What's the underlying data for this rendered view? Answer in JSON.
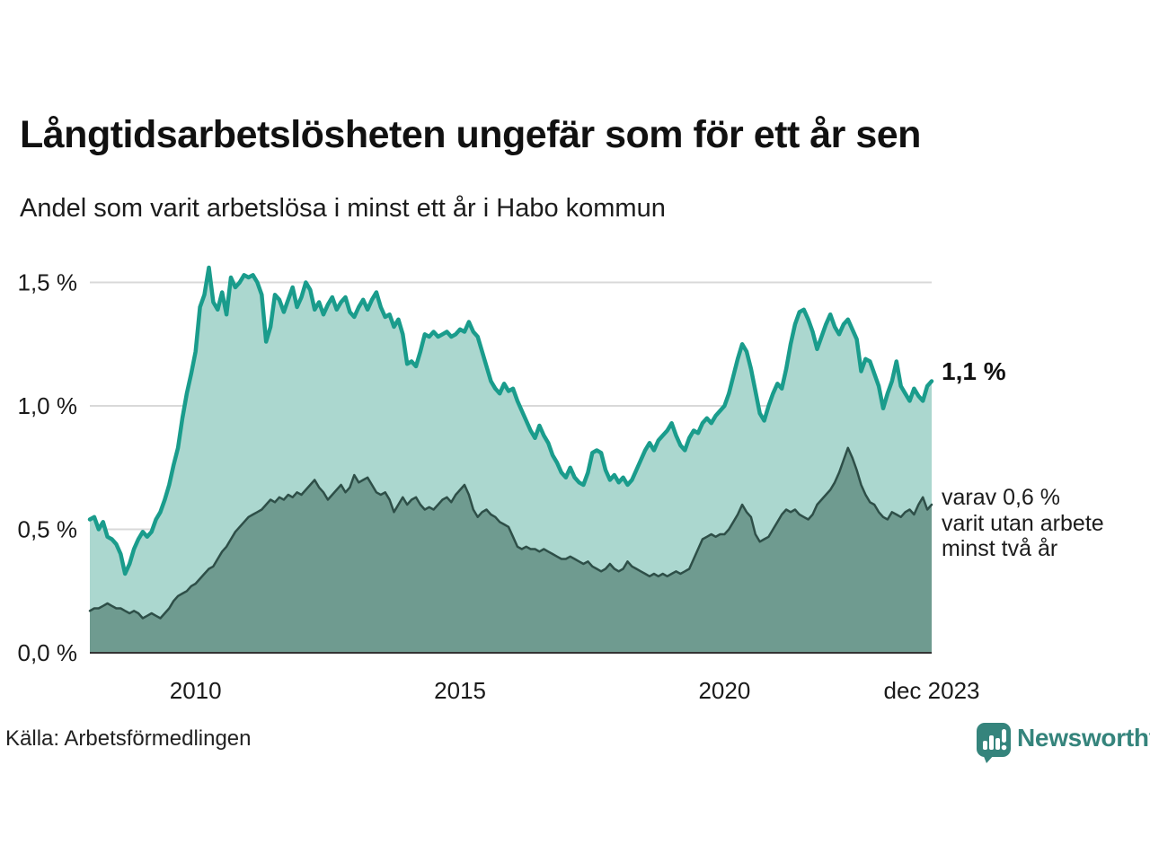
{
  "header": {
    "title": "Långtidsarbetslösheten ungefär som för ett år sen",
    "subtitle": "Andel som varit arbetslösa i minst ett år i Habo kommun"
  },
  "annotations": {
    "series1_end_label": "1,1 %",
    "series2_end_label_lines": [
      "varav 0,6 %",
      "varit utan arbete",
      "minst två år"
    ]
  },
  "footer": {
    "source": "Källa: Arbetsförmedlingen",
    "brand": "Newsworthy",
    "brand_icon": "newsworthy-speech-bubble-chart-icon",
    "brand_color": "#35847C"
  },
  "chart_data": {
    "type": "area",
    "title": "Långtidsarbetslösheten ungefär som för ett år sen",
    "subtitle": "Andel som varit arbetslösa i minst ett år i Habo kommun",
    "unit": "%",
    "grid": true,
    "x_range_years": [
      2008.0,
      2023.9167
    ],
    "ylim": [
      0,
      1.6
    ],
    "x_ticks": [
      {
        "label": "2010",
        "year": 2010.0
      },
      {
        "label": "2015",
        "year": 2015.0
      },
      {
        "label": "2020",
        "year": 2020.0
      },
      {
        "label": "dec 2023",
        "year": 2023.9167
      }
    ],
    "y_ticks": [
      {
        "label": "0,0 %",
        "value": 0.0
      },
      {
        "label": "0,5 %",
        "value": 0.5
      },
      {
        "label": "1,0 %",
        "value": 1.0
      },
      {
        "label": "1,5 %",
        "value": 1.5
      }
    ],
    "colors": {
      "gridline": "#D9D9D9",
      "baseline": "#333333"
    },
    "series": [
      {
        "name": "Andel som varit arbetslösa i minst ett år",
        "end_value": 1.1,
        "end_label": "1,1 %",
        "line_color": "#1A9C8C",
        "fill_color": "#ABD7CF",
        "line_width": 4.5,
        "values": [
          0.54,
          0.55,
          0.5,
          0.53,
          0.47,
          0.46,
          0.44,
          0.4,
          0.32,
          0.36,
          0.42,
          0.46,
          0.49,
          0.47,
          0.49,
          0.54,
          0.57,
          0.62,
          0.68,
          0.76,
          0.83,
          0.95,
          1.05,
          1.13,
          1.22,
          1.4,
          1.45,
          1.56,
          1.42,
          1.39,
          1.46,
          1.37,
          1.52,
          1.48,
          1.5,
          1.53,
          1.52,
          1.53,
          1.5,
          1.45,
          1.26,
          1.32,
          1.45,
          1.43,
          1.38,
          1.43,
          1.48,
          1.4,
          1.44,
          1.5,
          1.47,
          1.39,
          1.42,
          1.37,
          1.41,
          1.44,
          1.39,
          1.42,
          1.44,
          1.38,
          1.36,
          1.4,
          1.43,
          1.39,
          1.43,
          1.46,
          1.4,
          1.36,
          1.37,
          1.32,
          1.35,
          1.29,
          1.17,
          1.18,
          1.16,
          1.22,
          1.29,
          1.28,
          1.3,
          1.28,
          1.29,
          1.3,
          1.28,
          1.29,
          1.31,
          1.3,
          1.34,
          1.3,
          1.28,
          1.22,
          1.16,
          1.1,
          1.07,
          1.05,
          1.09,
          1.06,
          1.07,
          1.02,
          0.98,
          0.94,
          0.9,
          0.87,
          0.92,
          0.88,
          0.85,
          0.8,
          0.77,
          0.73,
          0.71,
          0.75,
          0.71,
          0.69,
          0.68,
          0.73,
          0.81,
          0.82,
          0.81,
          0.74,
          0.7,
          0.72,
          0.69,
          0.71,
          0.68,
          0.7,
          0.74,
          0.78,
          0.82,
          0.85,
          0.82,
          0.86,
          0.88,
          0.9,
          0.93,
          0.88,
          0.84,
          0.82,
          0.87,
          0.9,
          0.89,
          0.93,
          0.95,
          0.93,
          0.96,
          0.98,
          1.0,
          1.05,
          1.12,
          1.19,
          1.25,
          1.22,
          1.15,
          1.06,
          0.97,
          0.94,
          1.0,
          1.05,
          1.09,
          1.07,
          1.15,
          1.25,
          1.33,
          1.38,
          1.39,
          1.35,
          1.3,
          1.23,
          1.28,
          1.33,
          1.37,
          1.32,
          1.29,
          1.33,
          1.35,
          1.31,
          1.27,
          1.14,
          1.19,
          1.18,
          1.13,
          1.08,
          0.99,
          1.05,
          1.1,
          1.18,
          1.08,
          1.05,
          1.02,
          1.07,
          1.04,
          1.02,
          1.08,
          1.1
        ]
      },
      {
        "name": "varav utan arbete minst två år",
        "end_value": 0.6,
        "end_label": "varav 0,6 % varit utan arbete minst två år",
        "line_color": "#2E4F48",
        "fill_color": "#6F9B90",
        "line_width": 2.5,
        "values": [
          0.17,
          0.18,
          0.18,
          0.19,
          0.2,
          0.19,
          0.18,
          0.18,
          0.17,
          0.16,
          0.17,
          0.16,
          0.14,
          0.15,
          0.16,
          0.15,
          0.14,
          0.16,
          0.18,
          0.21,
          0.23,
          0.24,
          0.25,
          0.27,
          0.28,
          0.3,
          0.32,
          0.34,
          0.35,
          0.38,
          0.41,
          0.43,
          0.46,
          0.49,
          0.51,
          0.53,
          0.55,
          0.56,
          0.57,
          0.58,
          0.6,
          0.62,
          0.61,
          0.63,
          0.62,
          0.64,
          0.63,
          0.65,
          0.64,
          0.66,
          0.68,
          0.7,
          0.67,
          0.65,
          0.62,
          0.64,
          0.66,
          0.68,
          0.65,
          0.67,
          0.72,
          0.69,
          0.7,
          0.71,
          0.68,
          0.65,
          0.64,
          0.65,
          0.62,
          0.57,
          0.6,
          0.63,
          0.6,
          0.62,
          0.63,
          0.6,
          0.58,
          0.59,
          0.58,
          0.6,
          0.62,
          0.63,
          0.61,
          0.64,
          0.66,
          0.68,
          0.64,
          0.58,
          0.55,
          0.57,
          0.58,
          0.56,
          0.55,
          0.53,
          0.52,
          0.51,
          0.47,
          0.43,
          0.42,
          0.43,
          0.42,
          0.42,
          0.41,
          0.42,
          0.41,
          0.4,
          0.39,
          0.38,
          0.38,
          0.39,
          0.38,
          0.37,
          0.36,
          0.37,
          0.35,
          0.34,
          0.33,
          0.34,
          0.36,
          0.34,
          0.33,
          0.34,
          0.37,
          0.35,
          0.34,
          0.33,
          0.32,
          0.31,
          0.32,
          0.31,
          0.32,
          0.31,
          0.32,
          0.33,
          0.32,
          0.33,
          0.34,
          0.38,
          0.42,
          0.46,
          0.47,
          0.48,
          0.47,
          0.48,
          0.48,
          0.5,
          0.53,
          0.56,
          0.6,
          0.57,
          0.55,
          0.48,
          0.45,
          0.46,
          0.47,
          0.5,
          0.53,
          0.56,
          0.58,
          0.57,
          0.58,
          0.56,
          0.55,
          0.54,
          0.56,
          0.6,
          0.62,
          0.64,
          0.66,
          0.69,
          0.73,
          0.78,
          0.83,
          0.79,
          0.74,
          0.68,
          0.64,
          0.61,
          0.6,
          0.57,
          0.55,
          0.54,
          0.57,
          0.56,
          0.55,
          0.57,
          0.58,
          0.56,
          0.6,
          0.63,
          0.58,
          0.6
        ]
      }
    ]
  }
}
